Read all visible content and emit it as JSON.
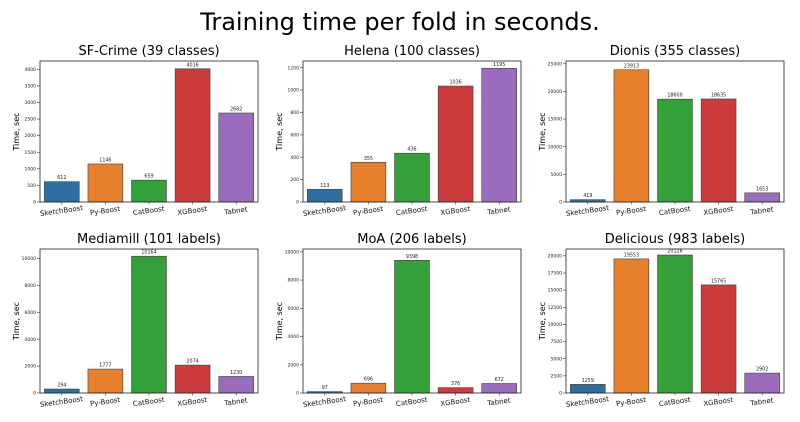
{
  "title": "Training time per fold in seconds.",
  "chart_data": [
    {
      "type": "bar",
      "title": "SF-Crime (39 classes)",
      "ylabel": "Time, sec",
      "categories": [
        "SketchBoost",
        "Py-Boost",
        "CatBoost",
        "XGBoost",
        "Tabnet"
      ],
      "values": [
        612,
        1146,
        659,
        4016,
        2682
      ],
      "value_labels": [
        "612",
        "1146",
        "659",
        "4016",
        "2682"
      ],
      "colors": [
        "#2f6f9f",
        "#e7802c",
        "#34a03a",
        "#cc3b3b",
        "#9a6cbd"
      ],
      "ylim": [
        0,
        4250
      ],
      "yticks": [
        0,
        500,
        1000,
        1500,
        2000,
        2500,
        3000,
        3500,
        4000
      ]
    },
    {
      "type": "bar",
      "title": "Helena (100 classes)",
      "ylabel": "Time, sec",
      "categories": [
        "SketchBoost",
        "Py-Boost",
        "CatBoost",
        "XGBoost",
        "Tabnet"
      ],
      "values": [
        113,
        355,
        436,
        1036,
        1195
      ],
      "value_labels": [
        "113",
        "355",
        "436",
        "1036",
        "1195"
      ],
      "colors": [
        "#2f6f9f",
        "#e7802c",
        "#34a03a",
        "#cc3b3b",
        "#9a6cbd"
      ],
      "ylim": [
        0,
        1260
      ],
      "yticks": [
        0,
        200,
        400,
        600,
        800,
        1000,
        1200
      ]
    },
    {
      "type": "bar",
      "title": "Dionis (355 classes)",
      "ylabel": "Time, sec",
      "categories": [
        "SketchBoost",
        "Py-Boost",
        "CatBoost",
        "XGBoost",
        "Tabnet"
      ],
      "values": [
        419,
        23913,
        18600,
        18635,
        1653
      ],
      "value_labels": [
        "419",
        "23913",
        "18600",
        "18635",
        "1653"
      ],
      "colors": [
        "#2f6f9f",
        "#e7802c",
        "#34a03a",
        "#cc3b3b",
        "#9a6cbd"
      ],
      "ylim": [
        0,
        25500
      ],
      "yticks": [
        0,
        5000,
        10000,
        15000,
        20000,
        25000
      ]
    },
    {
      "type": "bar",
      "title": "Mediamill (101 labels)",
      "ylabel": "Time, sec",
      "categories": [
        "SketchBoost",
        "Py-Boost",
        "CatBoost",
        "XGBoost",
        "Tabnet"
      ],
      "values": [
        294,
        1777,
        10164,
        2074,
        1230
      ],
      "value_labels": [
        "294",
        "1777",
        "10164",
        "2074",
        "1230"
      ],
      "colors": [
        "#2f6f9f",
        "#e7802c",
        "#34a03a",
        "#cc3b3b",
        "#9a6cbd"
      ],
      "ylim": [
        0,
        10700
      ],
      "yticks": [
        0,
        2000,
        4000,
        6000,
        8000,
        10000
      ]
    },
    {
      "type": "bar",
      "title": "MoA (206 labels)",
      "ylabel": "Time, sec",
      "categories": [
        "SketchBoost",
        "Py-Boost",
        "CatBoost",
        "XGBoost",
        "Tabnet"
      ],
      "values": [
        97,
        696,
        9398,
        376,
        672
      ],
      "value_labels": [
        "97",
        "696",
        "9398",
        "376",
        "672"
      ],
      "colors": [
        "#2f6f9f",
        "#e7802c",
        "#34a03a",
        "#cc3b3b",
        "#9a6cbd"
      ],
      "ylim": [
        0,
        10200
      ],
      "yticks": [
        0,
        2000,
        4000,
        6000,
        8000,
        10000
      ]
    },
    {
      "type": "bar",
      "title": "Delicious (983 labels)",
      "ylabel": "Time, sec",
      "categories": [
        "SketchBoost",
        "Py-Boost",
        "CatBoost",
        "XGBoost",
        "Tabnet"
      ],
      "values": [
        1259,
        19553,
        20126,
        15765,
        2902
      ],
      "value_labels": [
        "1259",
        "19553",
        "20126",
        "15765",
        "2902"
      ],
      "colors": [
        "#2f6f9f",
        "#e7802c",
        "#34a03a",
        "#cc3b3b",
        "#9a6cbd"
      ],
      "ylim": [
        0,
        21000
      ],
      "yticks": [
        0,
        2500,
        5000,
        7500,
        10000,
        12500,
        15000,
        17500,
        20000
      ]
    }
  ]
}
